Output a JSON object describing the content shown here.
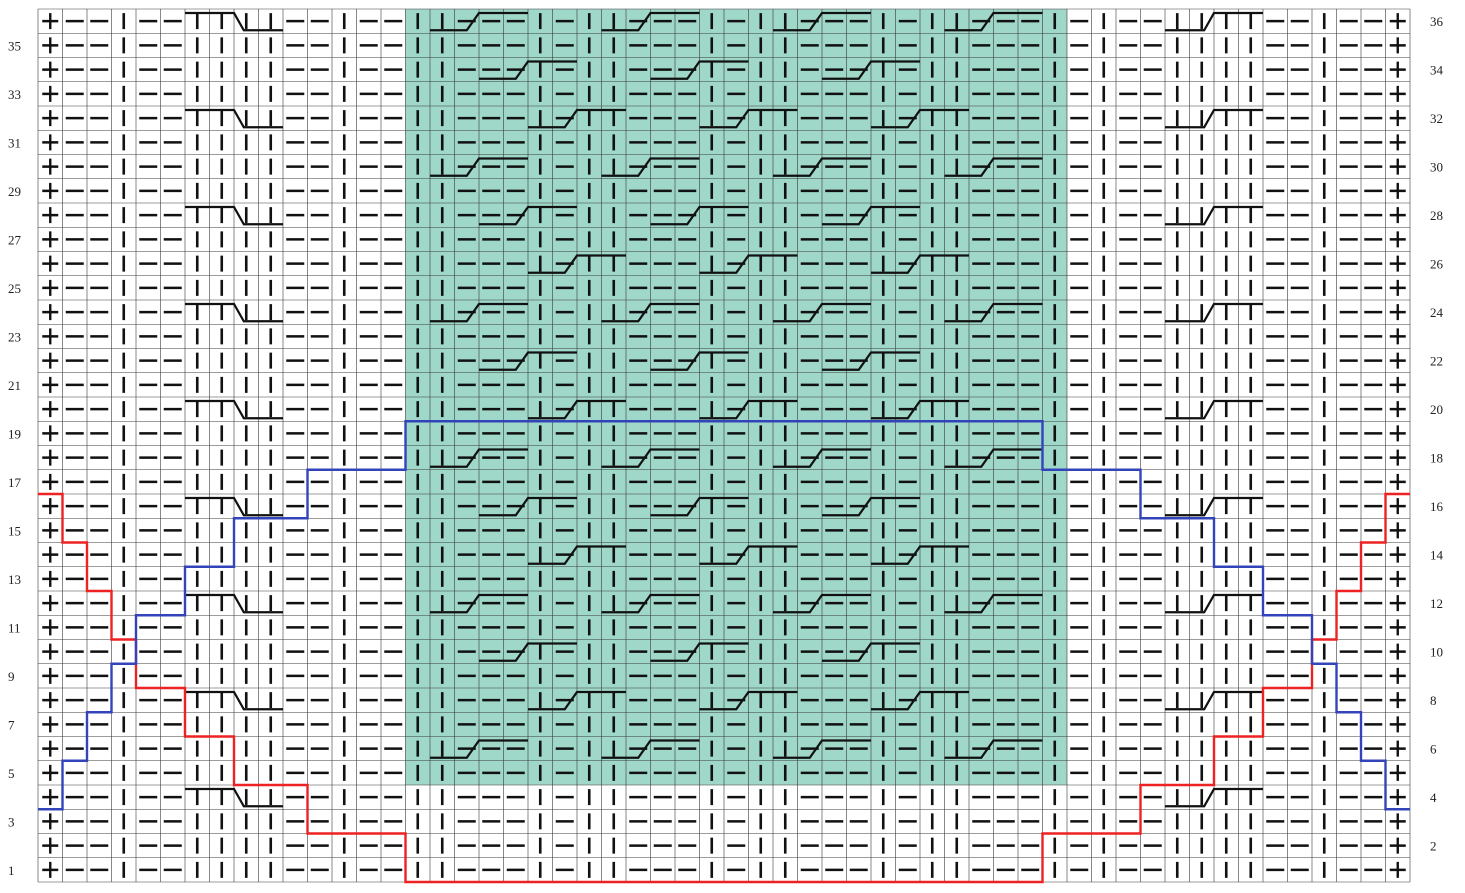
{
  "chart": {
    "columns": 56,
    "rows": 36,
    "colors": {
      "background": "#ffffff",
      "highlight": "#9fd8c9",
      "grid": "#3a3a3a",
      "symbol": "#111111",
      "red_line": "#ee2222",
      "blue_line": "#3344bb"
    },
    "row_labels_left": [
      "35",
      "33",
      "31",
      "29",
      "27",
      "25",
      "23",
      "21",
      "19",
      "17",
      "15",
      "13",
      "11",
      "9",
      "7",
      "5",
      "3",
      "1"
    ],
    "row_labels_right": [
      "36",
      "34",
      "32",
      "30",
      "28",
      "26",
      "24",
      "22",
      "20",
      "18",
      "16",
      "14",
      "12",
      "10",
      "8",
      "6",
      "4",
      "2"
    ],
    "highlight_region": {
      "col_start": 15,
      "col_end": 42,
      "row_start": 5,
      "row_end": 36
    },
    "symbol_legend": {
      "knit": "vertical bar",
      "purl": "horizontal dash",
      "edge": "plus",
      "cable_right": "two-stitch cross right",
      "cable_left": "two-stitch cross left"
    }
  }
}
